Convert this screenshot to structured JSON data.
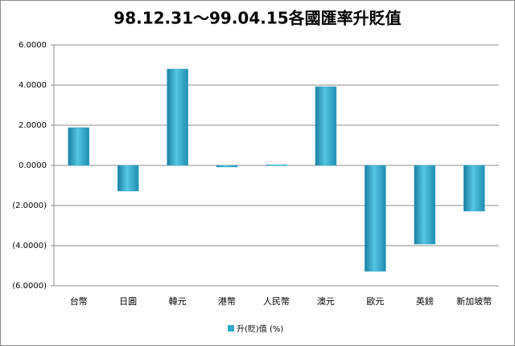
{
  "chart_data": {
    "type": "bar",
    "title": "98.12.31～99.04.15各國匯率升貶值",
    "categories": [
      "台幣",
      "日圓",
      "韓元",
      "港幣",
      "人民幣",
      "澳元",
      "歐元",
      "英鎊",
      "新加坡幣"
    ],
    "series": [
      {
        "name": "升(貶)值 (%)",
        "color": "#31a9cc",
        "values": [
          1.88,
          -1.28,
          4.8,
          -0.08,
          0.03,
          3.92,
          -5.28,
          -3.92,
          -2.28
        ]
      }
    ],
    "ylim": [
      -6,
      6
    ],
    "yticks": [
      {
        "value": 6,
        "label": "6.0000"
      },
      {
        "value": 4,
        "label": "4.0000"
      },
      {
        "value": 2,
        "label": "2.0000"
      },
      {
        "value": 0,
        "label": "0.0000"
      },
      {
        "value": -2,
        "label": "(2.0000)"
      },
      {
        "value": -4,
        "label": "(4.0000)"
      },
      {
        "value": -6,
        "label": "(6.0000)"
      }
    ],
    "negative_tick_color": "#c00000",
    "grid": true,
    "legend": "bottom"
  }
}
